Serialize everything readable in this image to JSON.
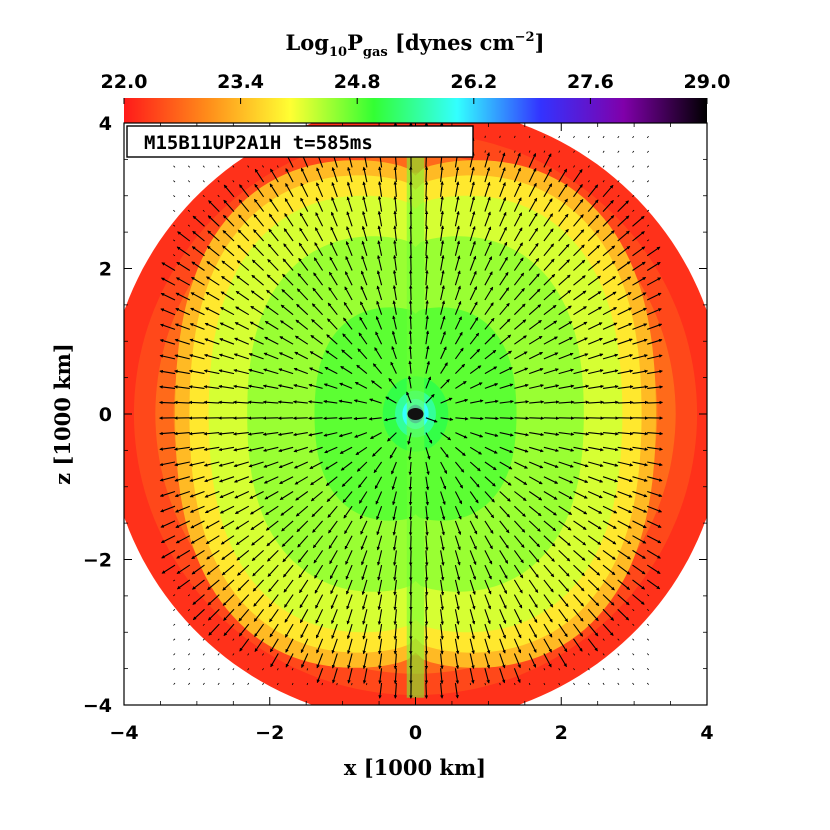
{
  "chart_data": {
    "type": "heatmap",
    "colorbar": {
      "title": "Log",
      "title_sub": "10",
      "title_var": "P",
      "title_var_sub": "gas",
      "title_units": " [dynes cm",
      "title_units_sup": "−2",
      "title_units_close": "]",
      "tick_labels": [
        "22.0",
        "23.4",
        "24.8",
        "26.2",
        "27.6",
        "29.0"
      ],
      "ticks": [
        22.0,
        23.4,
        24.8,
        26.2,
        27.6,
        29.0
      ],
      "range": [
        22.0,
        29.0
      ],
      "colormap_colors": [
        "#ff1a1a",
        "#ff8c1a",
        "#ffff33",
        "#33ff33",
        "#33ffff",
        "#3333ff",
        "#8000aa",
        "#000000"
      ]
    },
    "label": "M15B11UP2A1H t=585ms",
    "xlabel": "x [1000 km]",
    "ylabel": "z [1000 km]",
    "xlim": [
      -4,
      4
    ],
    "ylim": [
      -4,
      4
    ],
    "x_tick_labels": [
      "−4",
      "−2",
      "0",
      "2",
      "4"
    ],
    "y_tick_labels": [
      "−4",
      "−2",
      "0",
      "2",
      "4"
    ],
    "x_ticks": [
      -4,
      -2,
      0,
      2,
      4
    ],
    "y_ticks": [
      -4,
      -2,
      0,
      2,
      4
    ],
    "pressure_field": {
      "outer_region_value": 22.2,
      "shock_radius_equator": 3.3,
      "shock_radius_polar_at_edge": 2.85,
      "inner_green_value": 24.8,
      "center_value": 27.8,
      "domain_radius": 4.2
    },
    "velocity_field": {
      "direction": "radially outward",
      "arrow_spacing": 0.15,
      "extent": "inside shock"
    }
  }
}
